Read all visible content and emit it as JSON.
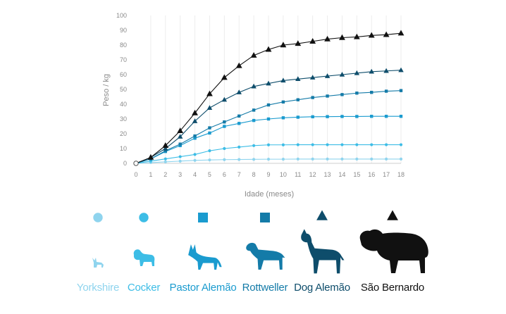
{
  "chart_data": {
    "type": "line",
    "xlabel": "Idade (meses)",
    "ylabel": "Peso / kg",
    "xlim": [
      0,
      18
    ],
    "ylim": [
      0,
      100
    ],
    "x_ticks": [
      0,
      1,
      2,
      3,
      4,
      5,
      6,
      7,
      8,
      9,
      10,
      11,
      12,
      13,
      14,
      15,
      16,
      17,
      18
    ],
    "y_ticks": [
      0,
      10,
      20,
      30,
      40,
      50,
      60,
      70,
      80,
      90,
      100
    ],
    "grid": "vertical",
    "x": [
      0,
      1,
      2,
      3,
      4,
      5,
      6,
      7,
      8,
      9,
      10,
      11,
      12,
      13,
      14,
      15,
      16,
      17,
      18
    ],
    "series": [
      {
        "name": "Yorkshire",
        "color": "#8fd4ee",
        "marker": "circle",
        "values": [
          0,
          0.5,
          1,
          1.5,
          2,
          2.3,
          2.5,
          2.6,
          2.7,
          2.8,
          2.8,
          2.9,
          2.9,
          2.9,
          2.9,
          2.9,
          2.9,
          2.9,
          2.9
        ]
      },
      {
        "name": "Cocker",
        "color": "#3dbde6",
        "marker": "circle",
        "values": [
          0,
          1.5,
          3,
          4.5,
          6,
          8.5,
          10,
          11,
          12,
          12.5,
          12.5,
          12.6,
          12.6,
          12.6,
          12.6,
          12.6,
          12.6,
          12.6,
          12.6
        ]
      },
      {
        "name": "Pastor Alemão",
        "color": "#1a9bcf",
        "marker": "square",
        "values": [
          0,
          3,
          8,
          12,
          17,
          20.5,
          25,
          27,
          29,
          30,
          30.8,
          31.2,
          31.5,
          31.6,
          31.7,
          31.7,
          31.8,
          31.8,
          31.8
        ]
      },
      {
        "name": "Rottweller",
        "color": "#147ba8",
        "marker": "square",
        "values": [
          0,
          3,
          8.5,
          13,
          18.5,
          24,
          28,
          32,
          36,
          39.5,
          41.5,
          43,
          44.5,
          45.5,
          46.5,
          47.5,
          48,
          48.8,
          49.2
        ]
      },
      {
        "name": "Dog Alemão",
        "color": "#0e4d6b",
        "marker": "triangle",
        "values": [
          0,
          4,
          10,
          18,
          28.5,
          37.5,
          43,
          48,
          52,
          54,
          56,
          57,
          58,
          59,
          60,
          61,
          62,
          62.5,
          63
        ]
      },
      {
        "name": "São Bernardo",
        "color": "#111111",
        "marker": "triangle",
        "values": [
          0,
          4,
          12,
          22,
          34,
          47,
          58,
          66,
          73,
          77,
          80,
          81,
          82.5,
          84,
          85,
          85.5,
          86.5,
          87,
          88
        ]
      }
    ]
  },
  "legend": [
    {
      "label": "Yorkshire",
      "color": "#8fd4ee",
      "marker": "circle",
      "icon": "yorkshire-silhouette"
    },
    {
      "label": "Cocker",
      "color": "#3dbde6",
      "marker": "circle",
      "icon": "cocker-silhouette"
    },
    {
      "label": "Pastor Alemão",
      "color": "#1a9bcf",
      "marker": "square",
      "icon": "german-shepherd-silhouette"
    },
    {
      "label": "Rottweller",
      "color": "#147ba8",
      "marker": "square",
      "icon": "rottweiler-silhouette"
    },
    {
      "label": "Dog Alemão",
      "color": "#0e4d6b",
      "marker": "triangle",
      "icon": "great-dane-silhouette"
    },
    {
      "label": "São Bernardo",
      "color": "#111111",
      "marker": "triangle",
      "icon": "saint-bernard-silhouette"
    }
  ]
}
